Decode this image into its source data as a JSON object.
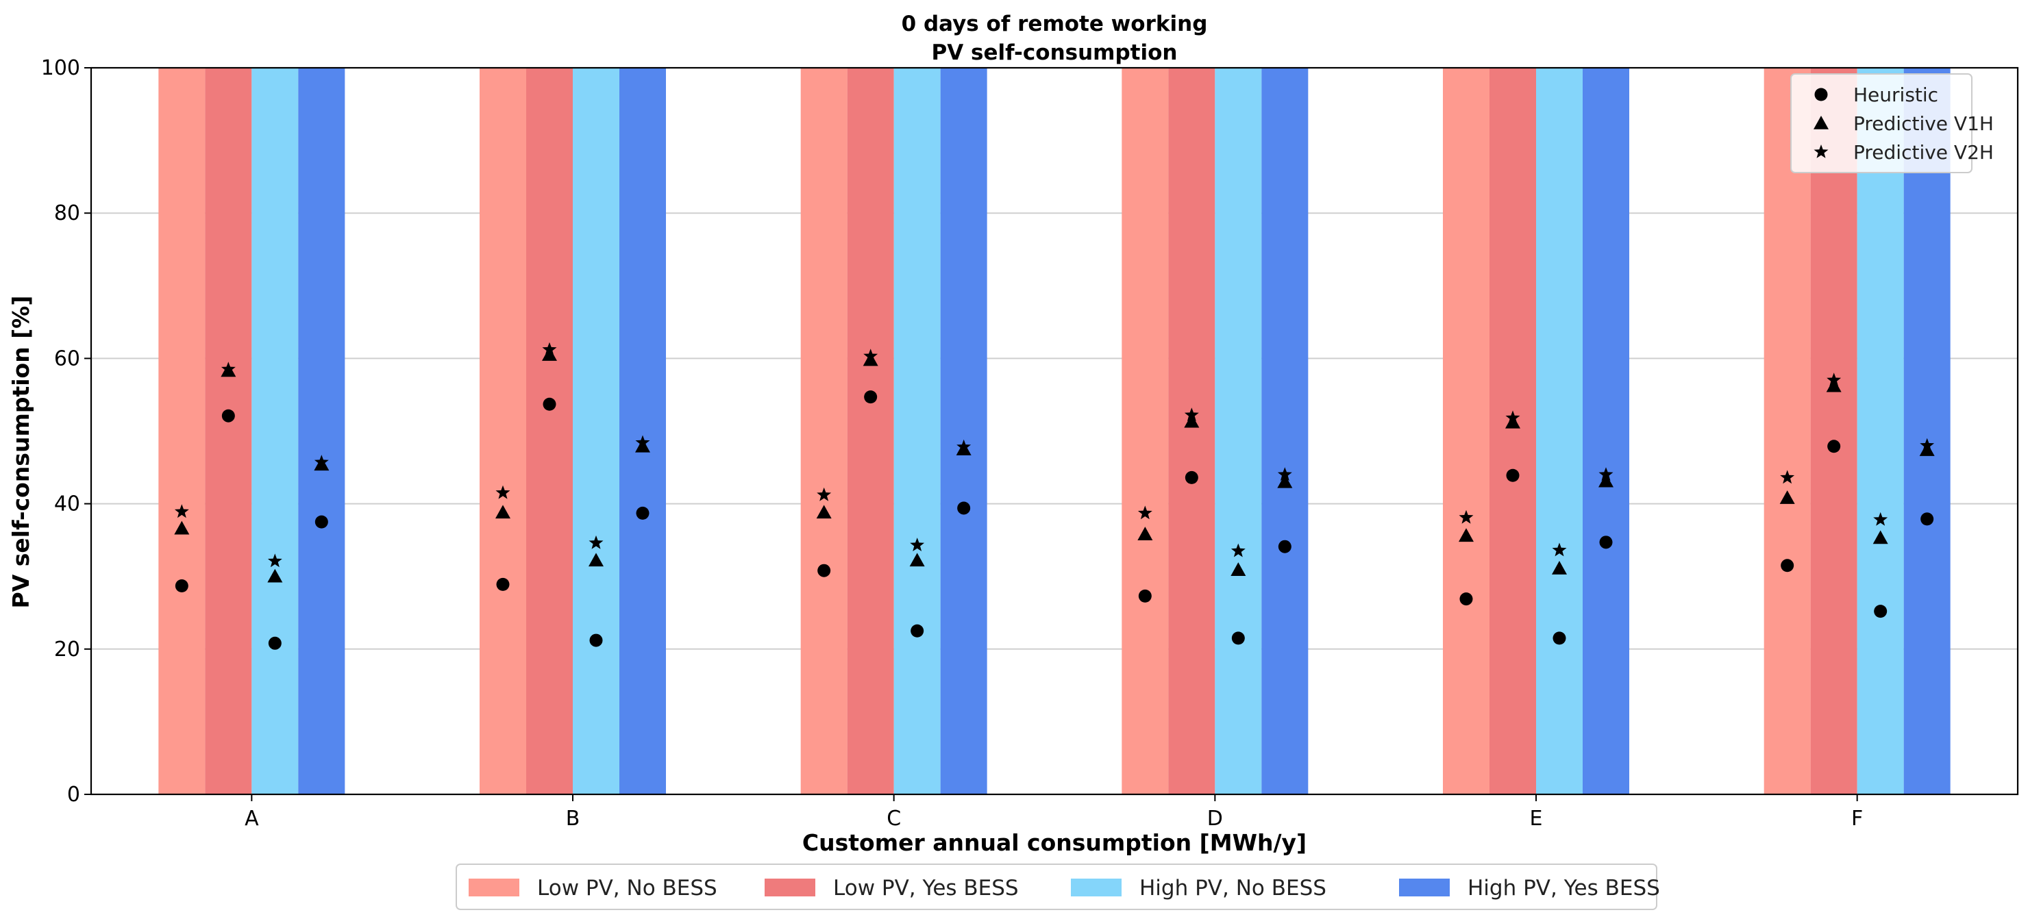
{
  "chart_data": {
    "type": "bar",
    "title": "0 days of remote working",
    "subtitle": "PV self-consumption",
    "xlabel": "Customer annual consumption [MWh/y]",
    "ylabel": "PV self-consumption [%]",
    "ylim": [
      0,
      100
    ],
    "yticks": [
      "0",
      "20",
      "40",
      "60",
      "80",
      "100"
    ],
    "grid": true,
    "categories": [
      "A",
      "B",
      "C",
      "D",
      "E",
      "F"
    ],
    "bar_series": [
      {
        "name": "Low PV, No BESS",
        "color": "#fe9a8f",
        "values": [
          100,
          100,
          100,
          100,
          100,
          100
        ]
      },
      {
        "name": "Low PV, Yes BESS",
        "color": "#ef7b7c",
        "values": [
          100,
          100,
          100,
          100,
          100,
          100
        ]
      },
      {
        "name": "High PV, No BESS",
        "color": "#84d5fa",
        "values": [
          100,
          100,
          100,
          100,
          100,
          100
        ]
      },
      {
        "name": "High PV, Yes BESS",
        "color": "#5587ee",
        "values": [
          100,
          100,
          100,
          100,
          100,
          100
        ]
      }
    ],
    "marker_series": [
      {
        "name": "Heuristic",
        "marker": "circle",
        "values": [
          [
            28.7,
            52.1,
            20.8,
            37.5
          ],
          [
            28.9,
            53.7,
            21.2,
            38.7
          ],
          [
            30.8,
            54.7,
            22.5,
            39.4
          ],
          [
            27.3,
            43.6,
            21.5,
            34.1
          ],
          [
            26.9,
            43.9,
            21.5,
            34.7
          ],
          [
            31.5,
            47.9,
            25.2,
            37.9
          ]
        ]
      },
      {
        "name": "Predictive V1H",
        "marker": "triangle",
        "values": [
          [
            36.6,
            58.3,
            30.0,
            45.4
          ],
          [
            38.8,
            60.5,
            32.2,
            47.9
          ],
          [
            38.8,
            59.8,
            32.2,
            47.5
          ],
          [
            35.8,
            51.3,
            30.9,
            43.0
          ],
          [
            35.6,
            51.2,
            31.1,
            43.1
          ],
          [
            40.8,
            56.2,
            35.3,
            47.4
          ]
        ]
      },
      {
        "name": "Predictive V2H",
        "marker": "star",
        "values": [
          [
            38.9,
            58.5,
            32.1,
            45.7
          ],
          [
            41.5,
            61.2,
            34.6,
            48.4
          ],
          [
            41.2,
            60.3,
            34.3,
            47.8
          ],
          [
            38.7,
            52.2,
            33.5,
            44.0
          ],
          [
            38.1,
            51.8,
            33.6,
            44.0
          ],
          [
            43.6,
            57.0,
            37.8,
            48.0
          ]
        ]
      }
    ],
    "marker_legend_position": "top-right",
    "bar_legend_position": "bottom-center"
  }
}
